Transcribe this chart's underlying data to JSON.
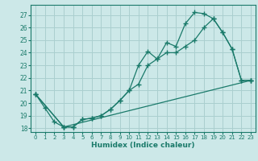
{
  "xlabel": "Humidex (Indice chaleur)",
  "bg_color": "#cce8e8",
  "grid_color": "#aacfcf",
  "line_color": "#1a7a6a",
  "xlim": [
    -0.5,
    23.5
  ],
  "ylim": [
    17.7,
    27.8
  ],
  "xticks": [
    0,
    1,
    2,
    3,
    4,
    5,
    6,
    7,
    8,
    9,
    10,
    11,
    12,
    13,
    14,
    15,
    16,
    17,
    18,
    19,
    20,
    21,
    22,
    23
  ],
  "yticks": [
    18,
    19,
    20,
    21,
    22,
    23,
    24,
    25,
    26,
    27
  ],
  "series1_x": [
    0,
    1,
    2,
    3,
    4,
    5,
    6,
    7,
    8,
    9,
    10,
    11,
    12,
    13,
    14,
    15,
    16,
    17,
    18,
    19,
    20,
    21,
    22,
    23
  ],
  "series1_y": [
    20.7,
    19.6,
    18.5,
    18.1,
    18.1,
    18.7,
    18.8,
    19.0,
    19.5,
    20.2,
    21.0,
    23.0,
    24.1,
    23.5,
    24.8,
    24.5,
    26.3,
    27.2,
    27.1,
    26.7,
    25.6,
    24.3,
    21.8,
    21.8
  ],
  "series2_x": [
    0,
    3,
    4,
    5,
    6,
    7,
    8,
    9,
    10,
    11,
    12,
    13,
    14,
    15,
    16,
    17,
    18,
    19,
    20,
    21,
    22,
    23
  ],
  "series2_y": [
    20.7,
    18.1,
    18.1,
    18.7,
    18.8,
    19.0,
    19.5,
    20.2,
    21.0,
    21.5,
    23.0,
    23.5,
    24.0,
    24.0,
    24.5,
    25.0,
    26.0,
    26.7,
    25.6,
    24.3,
    21.8,
    21.8
  ],
  "series3_x": [
    0,
    3,
    23
  ],
  "series3_y": [
    20.7,
    18.1,
    21.8
  ]
}
